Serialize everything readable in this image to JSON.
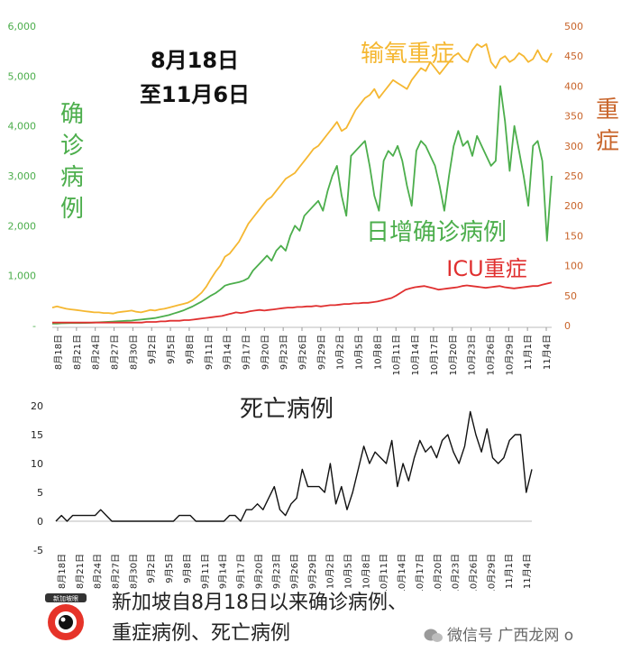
{
  "chart_data": [
    {
      "type": "line",
      "annotation": [
        "8月18日",
        "至11月6日"
      ],
      "left_axis": {
        "label": "确诊病例",
        "ticks": [
          "-",
          "1,000",
          "2,000",
          "3,000",
          "4,000",
          "5,000",
          "6,000"
        ],
        "range": [
          0,
          6000
        ]
      },
      "right_axis": {
        "label": "重症",
        "ticks": [
          "0",
          "50",
          "100",
          "150",
          "200",
          "250",
          "300",
          "350",
          "400",
          "450",
          "500"
        ],
        "range": [
          0,
          500
        ]
      },
      "x_ticks": [
        "8月18日",
        "8月21日",
        "8月24日",
        "8月27日",
        "8月30日",
        "9月2日",
        "9月5日",
        "9月8日",
        "9月11日",
        "9月14日",
        "9月17日",
        "9月20日",
        "9月23日",
        "9月26日",
        "9月29日",
        "10月2日",
        "10月5日",
        "10月8日",
        "10月11日",
        "10月14日",
        "10月17日",
        "10月20日",
        "10月23日",
        "10月26日",
        "10月29日",
        "11月1日",
        "11月4日"
      ],
      "series": [
        {
          "name": "日增确诊病例",
          "axis": "left",
          "color": "#4cae4c",
          "values": [
            40,
            40,
            45,
            48,
            50,
            52,
            50,
            52,
            55,
            60,
            65,
            70,
            75,
            80,
            85,
            90,
            95,
            100,
            110,
            120,
            130,
            140,
            150,
            170,
            190,
            210,
            240,
            270,
            300,
            340,
            380,
            430,
            480,
            540,
            600,
            650,
            720,
            800,
            830,
            850,
            870,
            900,
            950,
            1100,
            1200,
            1300,
            1400,
            1300,
            1500,
            1600,
            1500,
            1800,
            2000,
            1900,
            2200,
            2300,
            2400,
            2500,
            2300,
            2700,
            3000,
            3200,
            2600,
            2200,
            3400,
            3500,
            3600,
            3700,
            3200,
            2600,
            2300,
            3300,
            3500,
            3400,
            3600,
            3300,
            2800,
            2400,
            3500,
            3700,
            3600,
            3400,
            3200,
            2800,
            2300,
            3000,
            3600,
            3900,
            3600,
            3700,
            3400,
            3800,
            3600,
            3400,
            3200,
            3300,
            4800,
            4100,
            3100,
            4000,
            3500,
            3000,
            2400,
            3600,
            3700,
            3300,
            1700,
            3000
          ]
        },
        {
          "name": "输氧重症",
          "axis": "right",
          "color": "#f5b731",
          "values": [
            30,
            32,
            30,
            28,
            27,
            26,
            25,
            24,
            23,
            22,
            22,
            21,
            21,
            20,
            22,
            23,
            24,
            25,
            23,
            22,
            24,
            26,
            25,
            27,
            28,
            30,
            32,
            34,
            36,
            38,
            42,
            48,
            55,
            65,
            78,
            90,
            100,
            115,
            120,
            130,
            140,
            155,
            170,
            180,
            190,
            200,
            210,
            215,
            225,
            235,
            245,
            250,
            255,
            265,
            275,
            285,
            295,
            300,
            310,
            320,
            330,
            340,
            325,
            330,
            345,
            360,
            370,
            380,
            385,
            395,
            380,
            390,
            400,
            410,
            405,
            400,
            395,
            410,
            420,
            430,
            425,
            440,
            430,
            420,
            430,
            440,
            450,
            455,
            445,
            440,
            460,
            470,
            465,
            470,
            440,
            430,
            445,
            450,
            440,
            445,
            455,
            450,
            440,
            445,
            460,
            445,
            440,
            455
          ]
        },
        {
          "name": "ICU重症",
          "axis": "right",
          "color": "#e03030",
          "values": [
            5,
            5,
            5,
            5,
            5,
            5,
            5,
            5,
            5,
            5,
            5,
            5,
            5,
            5,
            5,
            5,
            5,
            5,
            5,
            5,
            6,
            6,
            6,
            7,
            7,
            8,
            8,
            8,
            9,
            9,
            10,
            11,
            12,
            13,
            14,
            15,
            16,
            18,
            20,
            22,
            21,
            22,
            24,
            25,
            26,
            25,
            26,
            27,
            28,
            29,
            30,
            30,
            31,
            31,
            32,
            32,
            33,
            32,
            33,
            34,
            34,
            35,
            36,
            36,
            37,
            37,
            38,
            38,
            39,
            40,
            42,
            44,
            46,
            50,
            55,
            60,
            62,
            64,
            65,
            66,
            64,
            62,
            60,
            61,
            62,
            63,
            64,
            66,
            67,
            66,
            65,
            64,
            63,
            64,
            65,
            66,
            64,
            63,
            62,
            63,
            64,
            65,
            66,
            66,
            68,
            70,
            72
          ]
        }
      ],
      "annotations": [
        "输氧重症",
        "日增确诊病例",
        "ICU重症"
      ]
    },
    {
      "type": "line",
      "title": "死亡病例",
      "y_ticks": [
        "-5",
        "0",
        "5",
        "10",
        "15",
        "20"
      ],
      "ylim": [
        -5,
        20
      ],
      "x_ticks": [
        "8月18日",
        "8月21日",
        "8月24日",
        "8月27日",
        "8月30日",
        "9月2日",
        "9月5日",
        "9月8日",
        "9月11日",
        "9月14日",
        "9月17日",
        "9月20日",
        "9月23日",
        "9月26日",
        "9月29日",
        "10月2日",
        "10月5日",
        "10月8日",
        "10月11日",
        "10月14日",
        "10月17日",
        "10月20日",
        "10月23日",
        "10月26日",
        "10月29日",
        "11月1日",
        "11月4日"
      ],
      "series": [
        {
          "name": "死亡病例",
          "color": "#111111",
          "values": [
            0,
            1,
            0,
            1,
            1,
            1,
            1,
            1,
            2,
            1,
            0,
            0,
            0,
            0,
            0,
            0,
            0,
            0,
            0,
            0,
            0,
            0,
            1,
            1,
            1,
            0,
            0,
            0,
            0,
            0,
            0,
            1,
            1,
            0,
            2,
            2,
            3,
            2,
            4,
            6,
            2,
            1,
            3,
            4,
            9,
            6,
            6,
            6,
            5,
            10,
            3,
            6,
            2,
            5,
            9,
            13,
            10,
            12,
            11,
            10,
            14,
            6,
            10,
            7,
            11,
            14,
            12,
            13,
            11,
            14,
            15,
            12,
            10,
            13,
            19,
            15,
            12,
            16,
            11,
            10,
            11,
            14,
            15,
            15,
            5,
            9
          ]
        }
      ]
    }
  ],
  "caption": [
    "新加坡自8月18日以来确诊病例、",
    "重症病例、死亡病例"
  ],
  "logo": {
    "text": "新加坡眼"
  },
  "watermark": {
    "text": "微信号 广西龙网 o"
  }
}
